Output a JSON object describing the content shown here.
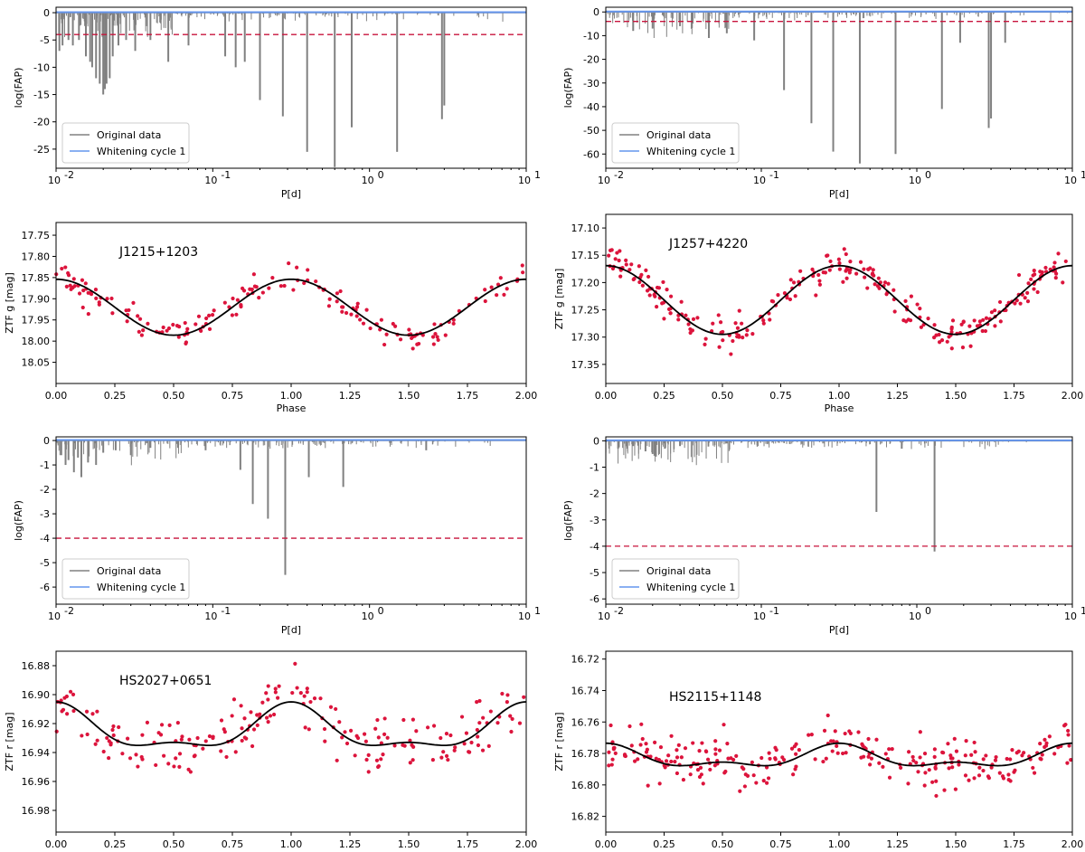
{
  "colors": {
    "original": "#808080",
    "whitening": "#6495ed",
    "threshold": "#c8143c",
    "points": "#dc143c",
    "fit": "#000000"
  },
  "chart_data": [
    {
      "id": "p1",
      "type": "periodogram",
      "xlabel": "P[d]",
      "ylabel": "log(FAP)",
      "xscale": "log",
      "xlim": [
        0.01,
        10
      ],
      "ylim": [
        -28.5,
        1
      ],
      "xticks": [
        {
          "v": 0.01,
          "label": "10"
        },
        {
          "v": 0.1,
          "label": "10"
        },
        {
          "v": 1,
          "label": "10"
        },
        {
          "v": 10,
          "label": "10"
        }
      ],
      "xtick_exps": [
        "-2",
        "-1",
        "0",
        "1"
      ],
      "yticks": [
        0,
        -5,
        -10,
        -15,
        -20,
        -25
      ],
      "threshold": -4,
      "legend": [
        "Original data",
        "Whitening cycle 1"
      ],
      "peaks": [
        [
          0.0105,
          -7
        ],
        [
          0.011,
          -6
        ],
        [
          0.012,
          -5
        ],
        [
          0.0128,
          -6
        ],
        [
          0.014,
          -5
        ],
        [
          0.0155,
          -8
        ],
        [
          0.0165,
          -9
        ],
        [
          0.017,
          -10
        ],
        [
          0.018,
          -12
        ],
        [
          0.019,
          -13
        ],
        [
          0.02,
          -15
        ],
        [
          0.0205,
          -14
        ],
        [
          0.021,
          -13
        ],
        [
          0.022,
          -12
        ],
        [
          0.023,
          -8
        ],
        [
          0.025,
          -6
        ],
        [
          0.028,
          -5
        ],
        [
          0.032,
          -7
        ],
        [
          0.04,
          -5
        ],
        [
          0.052,
          -9
        ],
        [
          0.07,
          -6
        ],
        [
          0.12,
          -8
        ],
        [
          0.14,
          -10
        ],
        [
          0.16,
          -9
        ],
        [
          0.2,
          -16
        ],
        [
          0.28,
          -19
        ],
        [
          0.4,
          -25.5
        ],
        [
          0.6,
          -28.3
        ],
        [
          0.77,
          -21
        ],
        [
          1.5,
          -25.5
        ],
        [
          2.9,
          -19.5
        ],
        [
          3.0,
          -17
        ]
      ]
    },
    {
      "id": "p2",
      "type": "periodogram",
      "xlabel": "P[d]",
      "ylabel": "log(FAP)",
      "xscale": "log",
      "xlim": [
        0.01,
        10
      ],
      "ylim": [
        -66,
        2
      ],
      "xticks": [
        {
          "v": 0.01,
          "label": "10"
        },
        {
          "v": 0.1,
          "label": "10"
        },
        {
          "v": 1,
          "label": "10"
        },
        {
          "v": 10,
          "label": "10"
        }
      ],
      "xtick_exps": [
        "-2",
        "-1",
        "0",
        "1"
      ],
      "yticks": [
        0,
        -10,
        -20,
        -30,
        -40,
        -50,
        -60
      ],
      "threshold": -4,
      "legend": [
        "Original data",
        "Whitening cycle 1"
      ],
      "peaks": [
        [
          0.015,
          -8
        ],
        [
          0.02,
          -7
        ],
        [
          0.03,
          -6
        ],
        [
          0.046,
          -11
        ],
        [
          0.06,
          -9
        ],
        [
          0.09,
          -12
        ],
        [
          0.14,
          -33
        ],
        [
          0.21,
          -47
        ],
        [
          0.29,
          -59
        ],
        [
          0.43,
          -64
        ],
        [
          0.73,
          -60
        ],
        [
          1.45,
          -41
        ],
        [
          1.9,
          -13
        ],
        [
          2.9,
          -49
        ],
        [
          3.0,
          -45
        ],
        [
          3.7,
          -13
        ]
      ]
    },
    {
      "id": "p3",
      "type": "phase",
      "title": "J1215+1203",
      "xlabel": "Phase",
      "ylabel": "ZTF g [mag]",
      "xlim": [
        0,
        2
      ],
      "ylim": [
        18.1,
        17.72
      ],
      "inverted_y": true,
      "xticks": [
        "0.00",
        "0.25",
        "0.50",
        "0.75",
        "1.00",
        "1.25",
        "1.50",
        "1.75",
        "2.00"
      ],
      "yticks": [
        "17.75",
        "17.80",
        "17.85",
        "17.90",
        "17.95",
        "18.00",
        "18.05"
      ],
      "fit": {
        "mean": 17.92,
        "a1": -0.066,
        "a2": 0.0,
        "phase2": 0.0
      },
      "scatter": 0.03,
      "n": 170,
      "seed": 11
    },
    {
      "id": "p4",
      "type": "phase",
      "title": "J1257+4220",
      "xlabel": "Phase",
      "ylabel": "ZTF g [mag]",
      "xlim": [
        0,
        2
      ],
      "ylim": [
        17.385,
        17.075
      ],
      "inverted_y": true,
      "xticks": [
        "0.00",
        "0.25",
        "0.50",
        "0.75",
        "1.00",
        "1.25",
        "1.50",
        "1.75",
        "2.00"
      ],
      "yticks": [
        "17.10",
        "17.15",
        "17.20",
        "17.25",
        "17.30",
        "17.35"
      ],
      "fit": {
        "mean": 17.232,
        "a1": -0.063,
        "a2": 0.0,
        "phase2": 0.0
      },
      "scatter": 0.026,
      "n": 260,
      "seed": 29
    },
    {
      "id": "p5",
      "type": "periodogram",
      "xlabel": "P[d]",
      "ylabel": "log(FAP)",
      "xscale": "log",
      "xlim": [
        0.01,
        10
      ],
      "ylim": [
        -6.7,
        0.15
      ],
      "xticks": [
        {
          "v": 0.01,
          "label": "10"
        },
        {
          "v": 0.1,
          "label": "10"
        },
        {
          "v": 1,
          "label": "10"
        },
        {
          "v": 10,
          "label": "10"
        }
      ],
      "xtick_exps": [
        "-2",
        "-1",
        "0",
        "1"
      ],
      "yticks": [
        0,
        -1,
        -2,
        -3,
        -4,
        -5,
        -6
      ],
      "threshold": -4,
      "legend": [
        "Original data",
        "Whitening cycle 1"
      ],
      "peaks": [
        [
          0.0108,
          -0.6
        ],
        [
          0.0115,
          -1.0
        ],
        [
          0.012,
          -0.8
        ],
        [
          0.013,
          -1.3
        ],
        [
          0.0138,
          -0.7
        ],
        [
          0.0145,
          -1.5
        ],
        [
          0.016,
          -0.9
        ],
        [
          0.018,
          -1.0
        ],
        [
          0.02,
          -0.5
        ],
        [
          0.024,
          -0.4
        ],
        [
          0.03,
          -0.6
        ],
        [
          0.04,
          -0.3
        ],
        [
          0.06,
          -0.3
        ],
        [
          0.09,
          -0.4
        ],
        [
          0.15,
          -1.2
        ],
        [
          0.18,
          -2.6
        ],
        [
          0.225,
          -3.2
        ],
        [
          0.29,
          -5.5
        ],
        [
          0.41,
          -1.5
        ],
        [
          0.68,
          -1.9
        ],
        [
          2.3,
          -0.4
        ]
      ]
    },
    {
      "id": "p6",
      "type": "periodogram",
      "xlabel": "P[d]",
      "ylabel": "log(FAP)",
      "xscale": "log",
      "xlim": [
        0.01,
        10
      ],
      "ylim": [
        -6.2,
        0.15
      ],
      "xticks": [
        {
          "v": 0.01,
          "label": "10"
        },
        {
          "v": 0.1,
          "label": "10"
        },
        {
          "v": 1,
          "label": "10"
        },
        {
          "v": 10,
          "label": "10"
        }
      ],
      "xtick_exps": [
        "-2",
        "-1",
        "0",
        "1"
      ],
      "yticks": [
        0,
        -1,
        -2,
        -3,
        -4,
        -5,
        -6
      ],
      "threshold": -4,
      "legend": [
        "Original data",
        "Whitening cycle 1"
      ],
      "peaks": [
        [
          0.0105,
          -0.15
        ],
        [
          0.012,
          -0.3
        ],
        [
          0.015,
          -0.2
        ],
        [
          0.018,
          -0.4
        ],
        [
          0.02,
          -0.5
        ],
        [
          0.021,
          -0.6
        ],
        [
          0.022,
          -0.5
        ],
        [
          0.024,
          -0.3
        ],
        [
          0.03,
          -0.2
        ],
        [
          0.06,
          -0.1
        ],
        [
          0.55,
          -2.7
        ],
        [
          0.8,
          -0.3
        ],
        [
          1.3,
          -4.2
        ]
      ]
    },
    {
      "id": "p7",
      "type": "phase",
      "title": "HS2027+0651",
      "xlabel": "Phase",
      "ylabel": "ZTF r [mag]",
      "xlim": [
        0,
        2
      ],
      "ylim": [
        16.995,
        16.87
      ],
      "inverted_y": true,
      "xticks": [
        "0.00",
        "0.25",
        "0.50",
        "0.75",
        "1.00",
        "1.25",
        "1.50",
        "1.75",
        "2.00"
      ],
      "yticks": [
        "16.88",
        "16.90",
        "16.92",
        "16.94",
        "16.96",
        "16.98"
      ],
      "fit": {
        "mean": 16.925,
        "a1": -0.014,
        "a2": -0.006,
        "phase2": 0.0
      },
      "scatter": 0.018,
      "n": 200,
      "seed": 47
    },
    {
      "id": "p8",
      "type": "phase",
      "title": "HS2115+1148",
      "xlabel": "Phase",
      "ylabel": "ZTF r [mag]",
      "xlim": [
        0,
        2
      ],
      "ylim": [
        16.83,
        16.715
      ],
      "inverted_y": true,
      "xticks": [
        "0.00",
        "0.25",
        "0.50",
        "0.75",
        "1.00",
        "1.25",
        "1.50",
        "1.75",
        "2.00"
      ],
      "yticks": [
        "16.72",
        "16.74",
        "16.76",
        "16.78",
        "16.80",
        "16.82"
      ],
      "fit": {
        "mean": 16.783,
        "a1": -0.006,
        "a2": -0.0035,
        "phase2": 0.0
      },
      "scatter": 0.013,
      "n": 260,
      "seed": 83
    }
  ]
}
